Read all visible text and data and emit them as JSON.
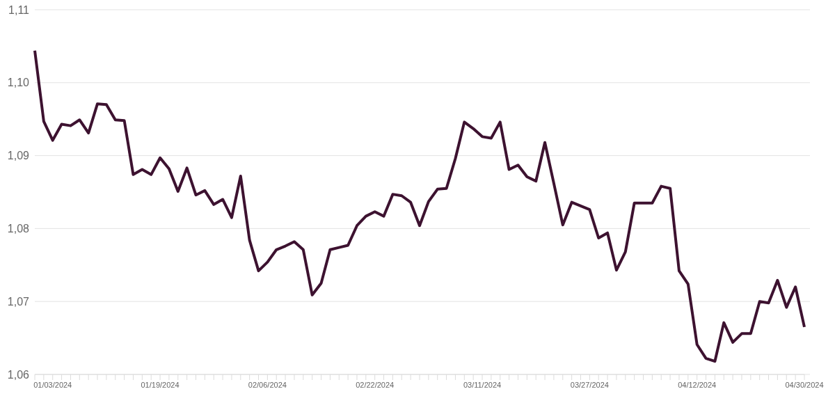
{
  "chart_data": {
    "type": "line",
    "categories": [
      null,
      null,
      "01/03/2024",
      null,
      null,
      null,
      null,
      null,
      null,
      null,
      null,
      null,
      null,
      null,
      "01/19/2024",
      null,
      null,
      null,
      null,
      null,
      null,
      null,
      null,
      null,
      null,
      null,
      "02/06/2024",
      null,
      null,
      null,
      null,
      null,
      null,
      null,
      null,
      null,
      null,
      null,
      "02/22/2024",
      null,
      null,
      null,
      null,
      null,
      null,
      null,
      null,
      null,
      null,
      null,
      "03/11/2024",
      null,
      null,
      null,
      null,
      null,
      null,
      null,
      null,
      null,
      null,
      null,
      "03/27/2024",
      null,
      null,
      null,
      null,
      null,
      null,
      null,
      null,
      null,
      null,
      null,
      "04/12/2024",
      null,
      null,
      null,
      null,
      null,
      null,
      null,
      null,
      null,
      null,
      null,
      "04/30/2024"
    ],
    "series": [
      {
        "color": "#3d1230",
        "values": [
          1.1044,
          1.0947,
          1.0921,
          1.0943,
          1.0941,
          1.0949,
          1.0931,
          1.0971,
          1.097,
          1.0949,
          1.0948,
          1.0874,
          1.0881,
          1.0874,
          1.0897,
          1.0882,
          1.0851,
          1.0883,
          1.0846,
          1.0852,
          1.0833,
          1.084,
          1.0815,
          1.0872,
          1.0784,
          1.0742,
          1.0754,
          1.0771,
          1.0776,
          1.0782,
          1.0771,
          1.0709,
          1.0725,
          1.0771,
          1.0774,
          1.0777,
          1.0804,
          1.0817,
          1.0823,
          1.0817,
          1.0847,
          1.0845,
          1.0836,
          1.0804,
          1.0837,
          1.0854,
          1.0855,
          1.0896,
          1.0946,
          1.0937,
          1.0926,
          1.0924,
          1.0946,
          1.0881,
          1.0887,
          1.0871,
          1.0865,
          1.0918,
          1.0862,
          1.0805,
          1.0836,
          1.0831,
          1.0826,
          1.0787,
          1.0794,
          1.0743,
          1.0768,
          1.0835,
          1.0835,
          1.0835,
          1.0858,
          1.0855,
          1.0742,
          1.0724,
          1.0641,
          1.0622,
          1.0618,
          1.0671,
          1.0644,
          1.0656,
          1.0656,
          1.07,
          1.0698,
          1.0729,
          1.0692,
          1.072,
          1.0665
        ]
      }
    ],
    "ylim": [
      1.06,
      1.11
    ],
    "yticks": [
      {
        "value": 1.06,
        "label": "1,06"
      },
      {
        "value": 1.07,
        "label": "1,07"
      },
      {
        "value": 1.08,
        "label": "1,08"
      },
      {
        "value": 1.09,
        "label": "1,09"
      },
      {
        "value": 1.1,
        "label": "1,10"
      },
      {
        "value": 1.11,
        "label": "1,11"
      }
    ],
    "grid": "y",
    "marker": "none",
    "line_style": "solid"
  }
}
